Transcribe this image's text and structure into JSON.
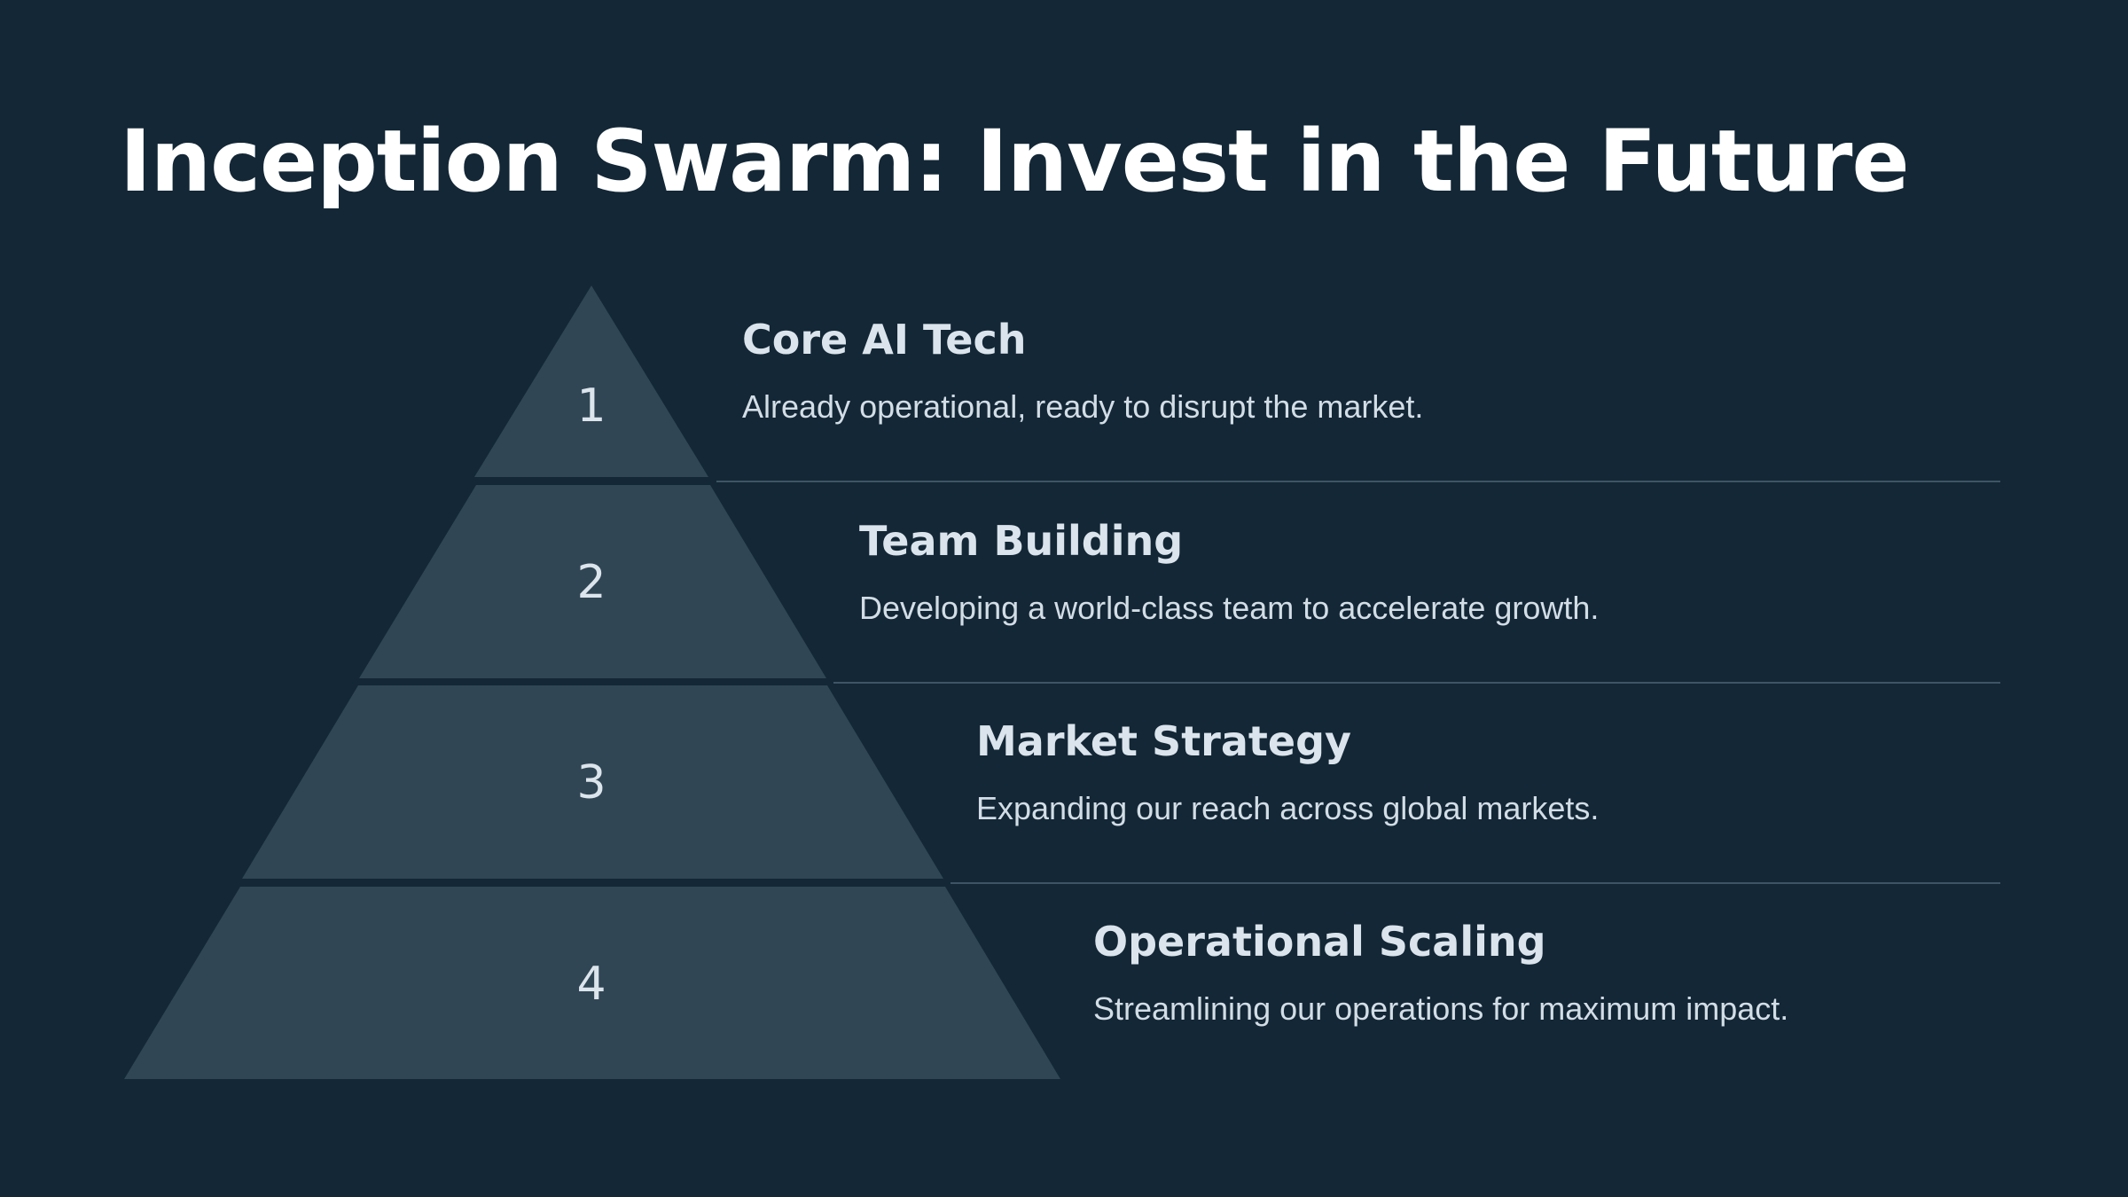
{
  "slide": {
    "title": "Inception Swarm: Invest in the Future"
  },
  "colors": {
    "background": "#132736",
    "tier_fill": "#304655",
    "divider": "#3f5565",
    "title_text": "#ffffff",
    "body_text": "#d3dde6"
  },
  "tiers": [
    {
      "number": "1",
      "heading": "Core AI Tech",
      "description": "Already operational, ready to disrupt the market."
    },
    {
      "number": "2",
      "heading": "Team Building",
      "description": "Developing a world-class team to accelerate growth."
    },
    {
      "number": "3",
      "heading": "Market Strategy",
      "description": "Expanding our reach across global markets."
    },
    {
      "number": "4",
      "heading": "Operational Scaling",
      "description": "Streamlining our operations for maximum impact."
    }
  ]
}
